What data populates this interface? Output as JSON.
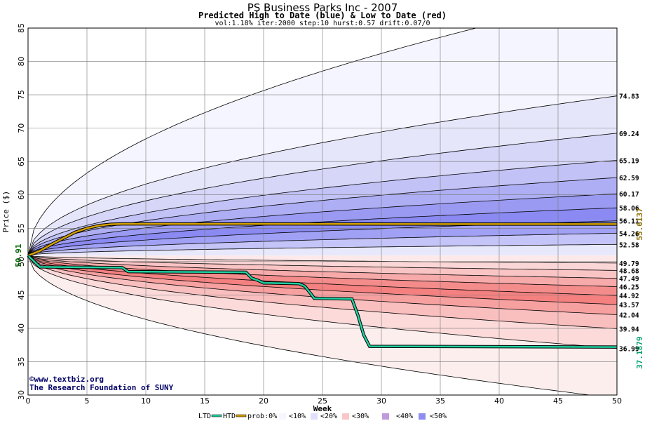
{
  "header": {
    "title": "PS Business Parks Inc - 2007",
    "subtitle": "Predicted High to Date (blue) &  Low to Date (red)",
    "params": "vol:1.18% iter:2000 step:10 hurst:0.57 drift:0.07/0"
  },
  "copyright": {
    "line1": "©www.textbiz.org",
    "line2": "The Research Foundation of SUNY"
  },
  "legend": {
    "ltd": "LTD",
    "htd": "HTD",
    "prob": "prob:0%",
    "b10": "<10%",
    "b20": "<20%",
    "b30": "<30%",
    "b40": "<40%",
    "b50": "<50%"
  },
  "colors": {
    "htd_line": "#d4a000",
    "ltd_line": "#20d0a0",
    "blue_label": "#8a6d00",
    "green_label": "#00a070"
  },
  "chart_data": {
    "type": "area",
    "title": "PS Business Parks Inc - 2007",
    "xlabel": "Week",
    "ylabel": "Price ($)",
    "xlim": [
      0,
      50
    ],
    "ylim": [
      30,
      85
    ],
    "xticks": [
      0,
      5,
      10,
      15,
      20,
      25,
      30,
      35,
      40,
      45,
      50
    ],
    "yticks": [
      30,
      35,
      40,
      45,
      50,
      55,
      60,
      65,
      70,
      75,
      80,
      85
    ],
    "grid": true,
    "start_price": 50.91,
    "start_label": "50.91",
    "upper_levels": [
      74.83,
      69.24,
      65.19,
      62.59,
      60.17,
      58.06,
      56.11,
      54.26,
      52.58
    ],
    "lower_levels": [
      49.79,
      48.68,
      47.49,
      46.25,
      44.92,
      43.57,
      42.04,
      39.94,
      36.99
    ],
    "upper_labels": [
      "74.83",
      "69.24",
      "65.19",
      "62.59",
      "60.17",
      "58.06",
      "56.11",
      "54.26",
      "52.58"
    ],
    "lower_labels": [
      "49.79",
      "48.68",
      "47.49",
      "46.25",
      "44.92",
      "43.57",
      "42.04",
      "39.94",
      "36.99"
    ],
    "outer_high_end": 90.0,
    "outer_low_end": 29.5,
    "htd_final": 55.6137,
    "ltd_final": 37.1879,
    "htd_final_label": "55.6137",
    "ltd_final_label": "37.1879",
    "htd_series": [
      [
        0,
        50.91
      ],
      [
        1,
        51.6
      ],
      [
        2,
        52.6
      ],
      [
        3,
        53.5
      ],
      [
        4,
        54.4
      ],
      [
        5,
        55.0
      ],
      [
        6,
        55.4
      ],
      [
        7,
        55.6
      ],
      [
        8,
        55.65
      ],
      [
        20,
        55.65
      ],
      [
        40,
        55.62
      ],
      [
        50,
        55.6137
      ]
    ],
    "ltd_series": [
      [
        0,
        50.91
      ],
      [
        1,
        49.2
      ],
      [
        8,
        49.1
      ],
      [
        8.5,
        48.5
      ],
      [
        18.5,
        48.4
      ],
      [
        19,
        47.5
      ],
      [
        19.5,
        47.2
      ],
      [
        20,
        46.8
      ],
      [
        23,
        46.7
      ],
      [
        23.5,
        46.3
      ],
      [
        24,
        45.2
      ],
      [
        24.3,
        44.5
      ],
      [
        27.5,
        44.4
      ],
      [
        28,
        42
      ],
      [
        28.5,
        39
      ],
      [
        29,
        37.3
      ],
      [
        50,
        37.1879
      ]
    ]
  }
}
